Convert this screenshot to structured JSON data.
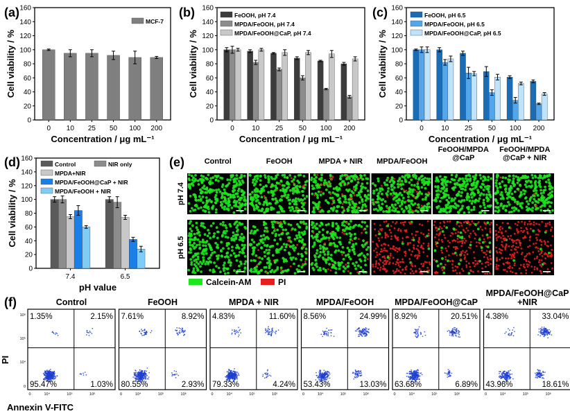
{
  "colors": {
    "a_bar": "#7f7f7f",
    "b": [
      "#3c3c3c",
      "#8c8c8c",
      "#c8c8c8"
    ],
    "c": [
      "#1b6cb5",
      "#55a6e8",
      "#bfe3fb"
    ],
    "d": [
      "#5a5a5a",
      "#8c8c8c",
      "#c8c8c8",
      "#1a7fe8",
      "#7fcdf7"
    ],
    "calcein": "#1ee61e",
    "pi": "#e61e1e",
    "flow_dots": "#1f3fd0"
  },
  "chart_data": [
    {
      "panel": "(a)",
      "type": "bar",
      "categories": [
        "0",
        "10",
        "25",
        "50",
        "100",
        "200"
      ],
      "series": [
        {
          "name": "MCF-7",
          "values": [
            100,
            95,
            95,
            92,
            89,
            89
          ],
          "errors": [
            1,
            5,
            5,
            6,
            9,
            1.5
          ]
        }
      ],
      "xlabel": "Concentration / μg mL⁻¹",
      "ylabel": "Cell viability / %",
      "ylim": [
        0,
        160
      ],
      "yticks": [
        0,
        20,
        40,
        60,
        80,
        100,
        120,
        140,
        160
      ],
      "legend": "top-right"
    },
    {
      "panel": "(b)",
      "type": "bar",
      "categories": [
        "0",
        "10",
        "25",
        "50",
        "100",
        "200"
      ],
      "series": [
        {
          "name": "FeOOH, pH 7.4",
          "values": [
            100,
            98,
            95,
            88,
            84,
            80
          ],
          "errors": [
            3,
            2,
            1,
            2,
            1,
            2
          ]
        },
        {
          "name": "MPDA/FeOOH, pH 7.4",
          "values": [
            100,
            82,
            72,
            60,
            44,
            33
          ],
          "errors": [
            5,
            3,
            2,
            3,
            1,
            2
          ]
        },
        {
          "name": "MPDA/FeOOH@CaP, pH 7.4",
          "values": [
            100,
            100,
            96,
            96,
            94,
            87
          ],
          "errors": [
            2,
            2,
            4,
            3,
            5,
            3
          ]
        }
      ],
      "xlabel": "Concentration / μg mL⁻¹",
      "ylabel": "Cell viability / %",
      "ylim": [
        0,
        160
      ],
      "yticks": [
        0,
        20,
        40,
        60,
        80,
        100,
        120,
        140,
        160
      ],
      "legend": "top-left"
    },
    {
      "panel": "(c)",
      "type": "bar",
      "categories": [
        "0",
        "10",
        "25",
        "50",
        "100",
        "200"
      ],
      "series": [
        {
          "name": "FeOOH, pH 6.5",
          "values": [
            100,
            100,
            95,
            69,
            61,
            55
          ],
          "errors": [
            1,
            3,
            3,
            7,
            2,
            2
          ]
        },
        {
          "name": "MPDA/FeOOH, pH 6.5",
          "values": [
            100,
            82,
            67,
            39,
            28,
            23
          ],
          "errors": [
            4,
            4,
            8,
            4,
            4,
            1
          ]
        },
        {
          "name": "MPDA/FeOOH@CaP, pH 6.5",
          "values": [
            100,
            87,
            66,
            61,
            52,
            37
          ],
          "errors": [
            4,
            4,
            3,
            4,
            2,
            2
          ]
        }
      ],
      "xlabel": "Concentration / μg mL⁻¹",
      "ylabel": "Cell viability / %",
      "ylim": [
        0,
        160
      ],
      "yticks": [
        0,
        20,
        40,
        60,
        80,
        100,
        120,
        140,
        160
      ],
      "legend": "top-left"
    },
    {
      "panel": "(d)",
      "type": "bar",
      "categories": [
        "7.4",
        "6.5"
      ],
      "series": [
        {
          "name": "Control",
          "values": [
            100,
            100
          ],
          "errors": [
            4,
            4
          ]
        },
        {
          "name": "NIR only",
          "values": [
            100,
            96
          ],
          "errors": [
            5,
            8
          ]
        },
        {
          "name": "MPDA+NIR",
          "values": [
            75,
            74
          ],
          "errors": [
            3,
            3
          ]
        },
        {
          "name": "MPDA/FeOOH@CaP + NIR",
          "values": [
            84,
            42
          ],
          "errors": [
            7,
            3
          ]
        },
        {
          "name": "MPDA/FeOOH + NIR",
          "values": [
            60,
            28
          ],
          "errors": [
            2,
            4
          ]
        }
      ],
      "xlabel": "pH value",
      "ylabel": "Cell viability / %",
      "ylim": [
        0,
        160
      ],
      "yticks": [
        0,
        20,
        40,
        60,
        80,
        100,
        120,
        140,
        160
      ],
      "legend": "top"
    }
  ],
  "panel_e": {
    "label": "(e)",
    "columns": [
      "Control",
      "FeOOH",
      "MPDA + NIR",
      "MPDA/FeOOH",
      "FeOOH/MPDA\n@CaP",
      "FeOOH/MPDA\n@CaP + NIR"
    ],
    "rows": [
      "pH 7.4",
      "pH 6.5"
    ],
    "legend": [
      "Calcein-AM",
      "PI"
    ],
    "live_fraction": [
      [
        1.0,
        0.95,
        0.85,
        0.9,
        1.0,
        0.97
      ],
      [
        1.0,
        0.92,
        0.88,
        0.05,
        0.15,
        0.02
      ]
    ]
  },
  "panel_f": {
    "label": "(f)",
    "ylabel": "PI",
    "xlabel": "Annexin V-FITC",
    "tick_labels": [
      "0",
      "10⁴",
      "10⁵",
      "10⁶"
    ],
    "plots": [
      {
        "title": "Control",
        "q": [
          "1.35%",
          "2.15%",
          "95.47%",
          "1.03%"
        ]
      },
      {
        "title": "FeOOH",
        "q": [
          "7.61%",
          "8.92%",
          "80.55%",
          "2.93%"
        ]
      },
      {
        "title": "MPDA + NIR",
        "q": [
          "4.83%",
          "11.60%",
          "79.33%",
          "4.24%"
        ]
      },
      {
        "title": "MPDA/FeOOH",
        "q": [
          "8.56%",
          "24.99%",
          "53.43%",
          "13.03%"
        ]
      },
      {
        "title": "MPDA/FeOOH@CaP",
        "q": [
          "8.92%",
          "20.51%",
          "63.68%",
          "6.89%"
        ]
      },
      {
        "title": "MPDA/FeOOH@CaP\n+NIR",
        "q": [
          "4.38%",
          "33.04%",
          "43.96%",
          "18.61%"
        ]
      }
    ]
  }
}
